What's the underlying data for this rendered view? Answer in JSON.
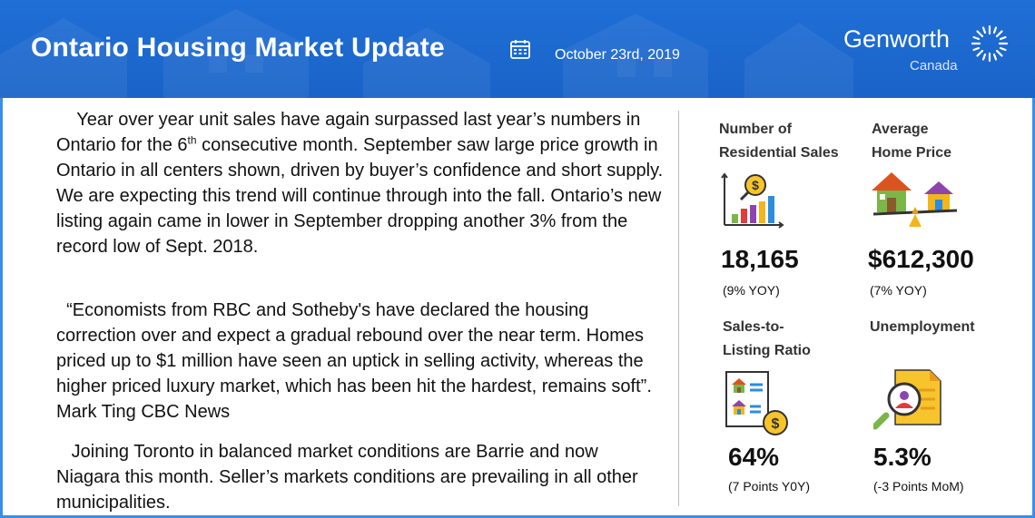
{
  "header": {
    "title": "Ontario Housing Market Update",
    "date": "October 23rd, 2019",
    "brand_name": "Genworth",
    "brand_sub": "Canada",
    "calendar_icon": "calendar-icon",
    "brand_icon": "genworth-sunburst-logo",
    "colors": {
      "header_bg": "#1a63c8",
      "border": "#3b8de8"
    }
  },
  "article": {
    "p1_before_sup": "Year over year unit sales have again surpassed last year’s numbers in Ontario for the 6",
    "p1_sup": "th",
    "p1_after_sup": " consecutive month. September saw large price growth in Ontario in all centers shown, driven by buyer’s confidence and short supply. We are expecting this trend will continue through into the fall.  Ontario’s new listing again came in lower in September dropping another 3% from the record low of Sept. 2018.",
    "p2": "“Economists from RBC and Sotheby's have declared the housing correction over and expect a gradual rebound over the near term. Homes priced up to $1 million have seen an uptick in selling activity, whereas the higher priced luxury market, which has been hit the hardest, remains soft”. Mark Ting CBC News",
    "p3": "Joining Toronto in balanced market conditions are Barrie and now Niagara this month. Seller’s markets conditions are prevailing in all other municipalities."
  },
  "stats": [
    {
      "label_line1": "Number of",
      "label_line2": "Residential Sales",
      "value": "18,165",
      "sub": "(9% YOY)",
      "icon": "bar-chart-magnifier-icon"
    },
    {
      "label_line1": "Average",
      "label_line2": "Home Price",
      "value": "$612,300",
      "sub": "(7% YOY)",
      "icon": "houses-on-scale-icon"
    },
    {
      "label_line1": "Sales-to-",
      "label_line2": "Listing Ratio",
      "value": "64%",
      "sub": "(7 Points Y0Y)",
      "icon": "listing-document-dollar-icon"
    },
    {
      "label_line1": "Unemployment",
      "label_line2": "",
      "value": "5.3%",
      "sub": "(-3 Points MoM)",
      "icon": "resume-magnifier-icon"
    }
  ]
}
